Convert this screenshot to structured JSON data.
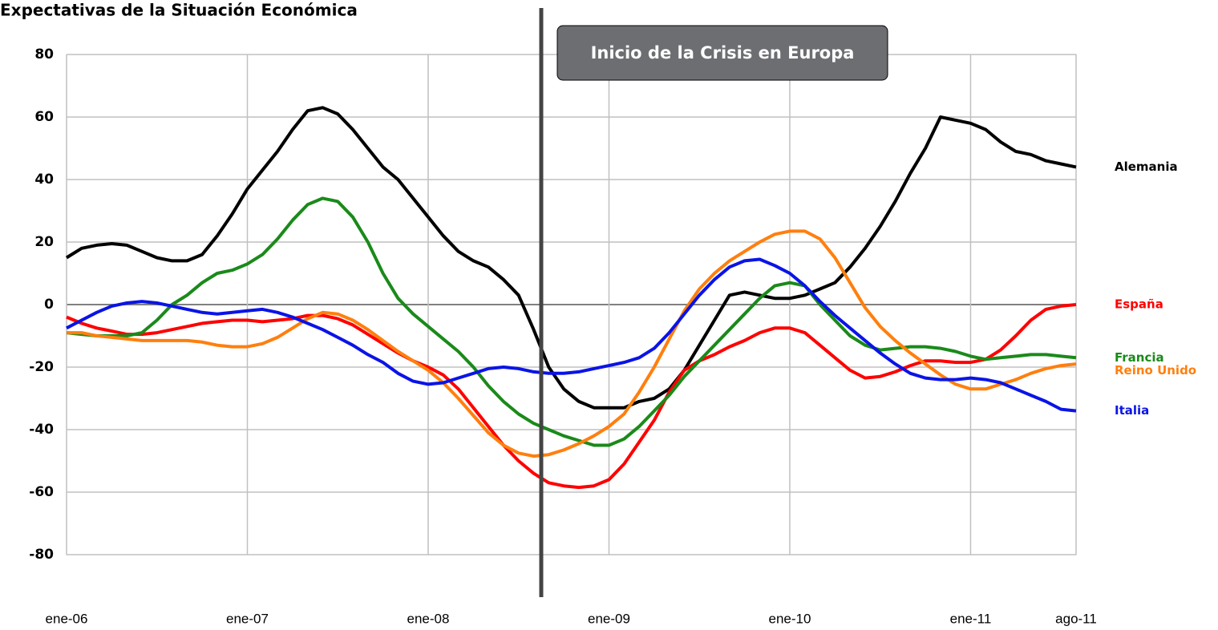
{
  "chart_data": {
    "type": "line",
    "title": "Expectativas de la Situación Económica",
    "annotation": "Inicio de la Crisis en Europa",
    "categories": [
      "ene-06",
      null,
      null,
      null,
      null,
      null,
      null,
      null,
      null,
      null,
      null,
      null,
      "ene-07",
      null,
      null,
      null,
      null,
      null,
      null,
      null,
      null,
      null,
      null,
      null,
      "ene-08",
      null,
      null,
      null,
      null,
      null,
      null,
      null,
      null,
      null,
      null,
      null,
      "ene-09",
      null,
      null,
      null,
      null,
      null,
      null,
      null,
      null,
      null,
      null,
      null,
      "ene-10",
      null,
      null,
      null,
      null,
      null,
      null,
      null,
      null,
      null,
      null,
      null,
      "ene-11",
      null,
      null,
      null,
      null,
      null,
      null,
      "ago-11"
    ],
    "ylim": [
      -80,
      80
    ],
    "yticks": [
      -80,
      -60,
      -40,
      -20,
      0,
      20,
      40,
      60,
      80
    ],
    "grid": true,
    "series": [
      {
        "name": "Alemania",
        "color": "#000000",
        "values": [
          15,
          18,
          19,
          19.5,
          19,
          17,
          15,
          14,
          14,
          16,
          22,
          29,
          37,
          43,
          49,
          56,
          62,
          63,
          61,
          56,
          50,
          44,
          40,
          34,
          28,
          22,
          17,
          14,
          12,
          8,
          3,
          -8,
          -20,
          -27,
          -31,
          -33,
          -33,
          -33,
          -31,
          -30,
          -27,
          -21,
          -13,
          -5,
          3,
          4,
          3,
          2,
          2,
          3,
          5,
          7,
          12,
          18,
          25,
          33,
          42,
          50,
          60,
          59,
          58,
          56,
          52,
          49,
          48,
          46,
          45,
          44
        ]
      },
      {
        "name": "España",
        "color": "#ff0000",
        "values": [
          -4,
          -6,
          -7.5,
          -8.5,
          -9.5,
          -9.5,
          -9,
          -8,
          -7,
          -6,
          -5.5,
          -5,
          -5,
          -5.5,
          -5,
          -4.5,
          -3.5,
          -3.5,
          -4.5,
          -6.5,
          -9.5,
          -12.5,
          -15.5,
          -18,
          -20,
          -22.5,
          -27,
          -33,
          -39,
          -45,
          -50,
          -54,
          -57,
          -58,
          -58.5,
          -58,
          -56,
          -51,
          -44,
          -37,
          -28,
          -21,
          -18,
          -16,
          -13.5,
          -11.5,
          -9,
          -7.5,
          -7.5,
          -9,
          -13,
          -17,
          -21,
          -23.5,
          -23,
          -21.5,
          -19.5,
          -18,
          -18,
          -18.5,
          -18.5,
          -17.5,
          -14.5,
          -10,
          -5,
          -1.5,
          -0.5,
          0
        ]
      },
      {
        "name": "Francia",
        "color": "#1a8a1a",
        "values": [
          -9,
          -9.5,
          -10,
          -10,
          -10,
          -9,
          -5,
          0,
          3,
          7,
          10,
          11,
          13,
          16,
          21,
          27,
          32,
          34,
          33,
          28,
          20,
          10,
          2,
          -3,
          -7,
          -11,
          -15,
          -20,
          -26,
          -31,
          -35,
          -38,
          -40,
          -42,
          -43.5,
          -45,
          -45,
          -43,
          -39,
          -34,
          -29,
          -23,
          -18,
          -13,
          -8,
          -3,
          2,
          6,
          7,
          6,
          0,
          -5,
          -10,
          -13,
          -14.5,
          -14,
          -13.5,
          -13.5,
          -14,
          -15,
          -16.5,
          -17.5,
          -17,
          -16.5,
          -16,
          -16,
          -16.5,
          -17
        ]
      },
      {
        "name": "Reino Unido",
        "color": "#ff7f0e",
        "values": [
          -9,
          -9,
          -10,
          -10.5,
          -11,
          -11.5,
          -11.5,
          -11.5,
          -11.5,
          -12,
          -13,
          -13.5,
          -13.5,
          -12.5,
          -10.5,
          -7.5,
          -4.5,
          -2.5,
          -3,
          -5,
          -8,
          -11.5,
          -15,
          -18,
          -21,
          -25,
          -30,
          -35.5,
          -41,
          -45,
          -47.5,
          -48.5,
          -48,
          -46.5,
          -44.5,
          -42,
          -39,
          -35,
          -28,
          -20,
          -11,
          -2,
          5,
          10,
          14,
          17,
          20,
          22.5,
          23.5,
          23.5,
          21,
          15,
          7,
          -1,
          -7,
          -11.5,
          -15.5,
          -19,
          -22.5,
          -25.5,
          -27,
          -27,
          -25.5,
          -24,
          -22,
          -20.5,
          -19.5,
          -19
        ]
      },
      {
        "name": "Italia",
        "color": "#0a14e6",
        "values": [
          -7.5,
          -5,
          -2.5,
          -0.5,
          0.5,
          1,
          0.5,
          -0.5,
          -1.5,
          -2.5,
          -3,
          -2.5,
          -2,
          -1.5,
          -2.5,
          -4,
          -6,
          -8,
          -10.5,
          -13,
          -16,
          -18.5,
          -22,
          -24.5,
          -25.5,
          -25,
          -23.5,
          -22,
          -20.5,
          -20,
          -20.5,
          -21.5,
          -22,
          -22,
          -21.5,
          -20.5,
          -19.5,
          -18.5,
          -17,
          -14,
          -9,
          -3,
          3,
          8,
          12,
          14,
          14.5,
          12.5,
          10,
          6,
          1,
          -3.5,
          -7.5,
          -11.5,
          -15.5,
          -19,
          -22,
          -23.5,
          -24,
          -24,
          -23.5,
          -24,
          -25,
          -27,
          -29,
          -31,
          -33.5,
          -34
        ]
      }
    ]
  }
}
